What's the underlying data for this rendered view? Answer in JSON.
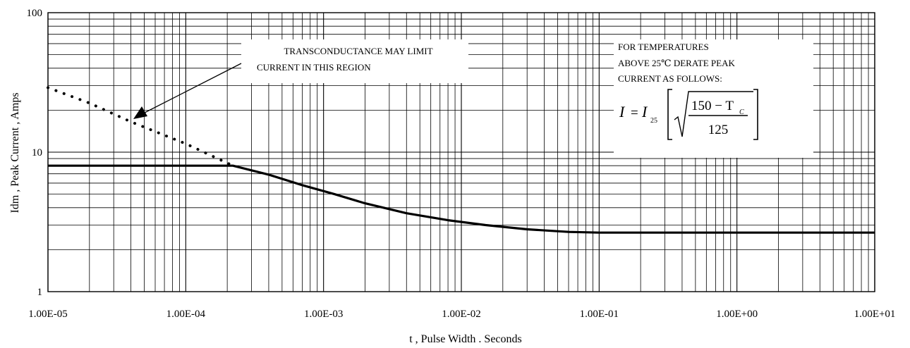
{
  "chart_data": {
    "type": "line",
    "xscale": "log",
    "yscale": "log",
    "xlim": [
      1e-05,
      10
    ],
    "ylim": [
      1,
      100
    ],
    "grid": true,
    "xlabel": "t ,  Pulse Width . Seconds",
    "ylabel": "Idm , Peak Current , Amps",
    "x_tick_labels": [
      "1.00E-05",
      "1.00E-04",
      "1.00E-03",
      "1.00E-02",
      "1.00E-01",
      "1.00E+00",
      "1.00E+01"
    ],
    "y_tick_labels": [
      "1",
      "10",
      "100"
    ],
    "series": [
      {
        "style": "solid",
        "x": [
          1e-05,
          0.0001,
          0.00022,
          0.0004,
          0.0007,
          0.0012,
          0.002,
          0.004,
          0.008,
          0.015,
          0.03,
          0.06,
          0.1,
          0.3,
          1,
          10
        ],
        "y": [
          8.0,
          8.0,
          8.0,
          6.9,
          5.8,
          5.0,
          4.3,
          3.65,
          3.25,
          3.0,
          2.8,
          2.68,
          2.65,
          2.65,
          2.65,
          2.65
        ]
      },
      {
        "style": "dotted",
        "x": [
          1e-05,
          2e-05,
          4e-05,
          0.0001,
          0.00022
        ],
        "y": [
          29,
          22.5,
          16.5,
          11.5,
          8.0
        ]
      }
    ],
    "annotations": {
      "transconductance": [
        "TRANSCONDUCTANCE MAY LIMIT",
        "CURRENT IN THIS REGION"
      ],
      "derate": [
        "FOR TEMPERATURES",
        "ABOVE 25℃ DERATE PEAK",
        "CURRENT AS FOLLOWS:"
      ],
      "formula": {
        "lhs": "I",
        "eq": "=",
        "coef": "I",
        "coef_sub": "25",
        "numerator": "150 − T",
        "numerator_sub": "C",
        "denominator": "125"
      }
    }
  }
}
